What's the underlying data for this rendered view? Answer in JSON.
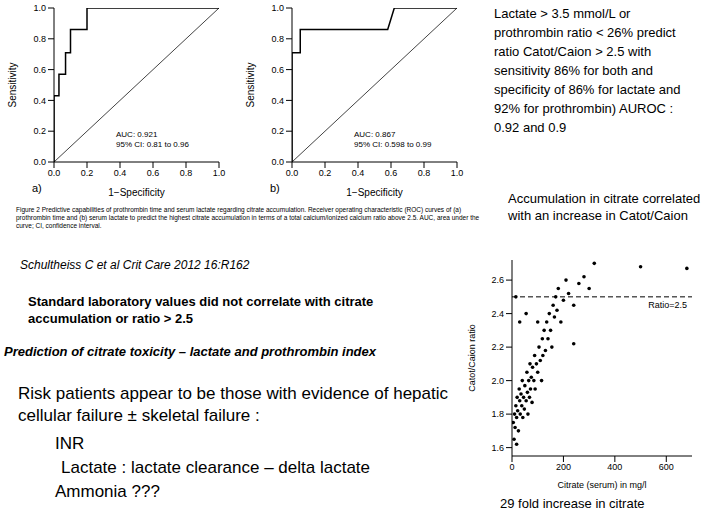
{
  "chart_data": [
    {
      "type": "line",
      "panel_label": "a)",
      "xlabel": "1−Specificity",
      "ylabel": "Sensitivity",
      "annotations": [
        "AUC: 0.921",
        "95% CI: 0.81 to 0.96"
      ],
      "x": [
        0,
        0,
        0.03,
        0.03,
        0.07,
        0.07,
        0.1,
        0.1,
        0.2,
        0.2,
        1
      ],
      "values": [
        0,
        0.43,
        0.43,
        0.57,
        0.57,
        0.71,
        0.71,
        0.86,
        0.86,
        1,
        1
      ],
      "diagonal": [
        [
          0,
          0
        ],
        [
          1,
          1
        ]
      ],
      "color": "#000000",
      "xlim": [
        0,
        1
      ],
      "ylim": [
        0,
        1
      ],
      "xticks": [
        {
          "value": 0,
          "label": "0.0"
        },
        0.2,
        0.4,
        0.6,
        0.8,
        {
          "value": 1,
          "label": "1.0"
        }
      ],
      "yticks": [
        {
          "value": 0,
          "label": "0.0"
        },
        0.2,
        0.4,
        0.6,
        0.8,
        {
          "value": 1,
          "label": "1.0"
        }
      ]
    },
    {
      "type": "line",
      "panel_label": "b)",
      "xlabel": "1−Specificity",
      "ylabel": "Sensitivity",
      "annotations": [
        "AUC: 0.867",
        "95% CI: 0.598 to 0.99"
      ],
      "x": [
        0,
        0,
        0.05,
        0.05,
        0.58,
        0.62,
        1
      ],
      "values": [
        0,
        0.71,
        0.71,
        0.86,
        0.86,
        1,
        1
      ],
      "diagonal": [
        [
          0,
          0
        ],
        [
          1,
          1
        ]
      ],
      "color": "#000000",
      "xlim": [
        0,
        1
      ],
      "ylim": [
        0,
        1
      ],
      "xticks": [
        {
          "value": 0,
          "label": "0.0"
        },
        0.2,
        0.4,
        0.6,
        0.8,
        {
          "value": 1,
          "label": "1.0"
        }
      ],
      "yticks": [
        {
          "value": 0,
          "label": "0.0"
        },
        0.2,
        0.4,
        0.6,
        0.8,
        {
          "value": 1,
          "label": "1.0"
        }
      ]
    },
    {
      "type": "scatter",
      "xlabel": "Citrate (serum) in mg/l",
      "ylabel": "Catot/Caion ratio",
      "caption": "29 fold increase in citrate",
      "color": "#000000",
      "x": [
        5,
        10,
        12,
        15,
        18,
        20,
        22,
        25,
        28,
        30,
        32,
        35,
        38,
        40,
        42,
        45,
        48,
        50,
        55,
        58,
        60,
        62,
        65,
        68,
        70,
        72,
        75,
        78,
        80,
        85,
        88,
        90,
        95,
        100,
        105,
        110,
        115,
        118,
        120,
        125,
        130,
        135,
        140,
        145,
        150,
        155,
        160,
        165,
        170,
        175,
        180,
        190,
        200,
        210,
        220,
        240,
        260,
        280,
        300,
        320,
        15,
        30,
        55,
        100,
        240,
        8,
        18,
        500,
        680
      ],
      "values": [
        1.75,
        1.8,
        1.72,
        1.85,
        1.78,
        1.9,
        1.82,
        1.7,
        1.95,
        1.88,
        1.8,
        1.92,
        1.85,
        2.0,
        1.78,
        1.9,
        1.83,
        1.97,
        1.88,
        2.05,
        1.93,
        1.8,
        2.0,
        1.9,
        2.1,
        1.95,
        2.02,
        1.87,
        2.08,
        2.0,
        2.15,
        1.95,
        2.1,
        2.05,
        2.2,
        2.12,
        2.0,
        2.25,
        2.15,
        2.3,
        2.18,
        2.35,
        2.25,
        2.4,
        2.3,
        2.2,
        2.45,
        2.38,
        2.5,
        2.42,
        2.55,
        2.35,
        2.48,
        2.6,
        2.52,
        2.45,
        2.58,
        2.62,
        2.55,
        2.7,
        2.5,
        2.35,
        2.4,
        2.35,
        2.22,
        1.65,
        1.62,
        2.68,
        2.67
      ],
      "reference_line": {
        "value": 2.5,
        "label": "Ratio=2.5",
        "line_style": "dashed"
      },
      "xlim": [
        0,
        700
      ],
      "ylim": [
        1.55,
        2.72
      ],
      "xticks": [
        0,
        200,
        400,
        600
      ],
      "yticks": [
        1.6,
        1.8,
        {
          "value": 2,
          "label": "2.0"
        },
        2.2,
        2.4,
        2.6
      ]
    }
  ],
  "document": {
    "figure_caption": "Figure 2 Predictive capabilities of prothrombin time and serum lactate regarding citrate accumulation. Receiver operating characteristic (ROC) curves of (a) prothrombin time and (b) serum lactate to predict the highest citrate accumulation in terms of a total calcium/ionized calcium ratio above 2.5. AUC, area under the curve; CI, confidence interval.",
    "summary": "Lactate > 3.5 mmol/L or prothrombin ratio < 26% predict ratio Catot/Caion > 2.5 with sensitivity 86% for both and specificity of 86% for lactate and 92% for prothrombin) AUROC : 0.92 and 0.9",
    "accumulation_note": "Accumulation in citrate correlated with an increase in Catot/Caion",
    "citation": "Schultheiss C et al Crit Care 2012 16:R162",
    "standard_labs": "Standard laboratory values did not correlate with citrate accumulation or ratio > 2.5",
    "heading": "Prediction of citrate toxicity – lactate and prothrombin index",
    "risk": "Risk patients appear to be those with evidence of hepatic cellular failure ± skeletal failure :",
    "risk_items": [
      "INR",
      "Lactate : lactate clearance – delta lactate",
      "Ammonia ???"
    ]
  }
}
